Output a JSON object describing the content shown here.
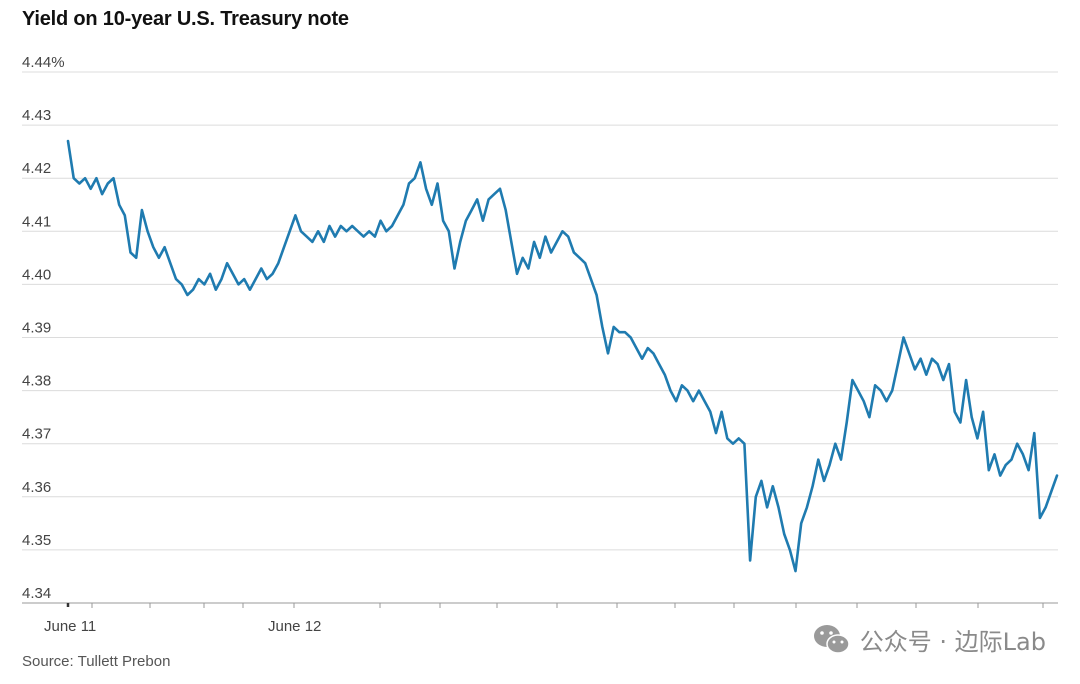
{
  "chart_data": {
    "type": "line",
    "title": "Yield on 10-year U.S. Treasury note",
    "source": "Source: Tullett Prebon",
    "ylim": [
      4.34,
      4.44
    ],
    "y_ticks": [
      4.34,
      4.35,
      4.36,
      4.37,
      4.38,
      4.39,
      4.4,
      4.41,
      4.42,
      4.43,
      4.44
    ],
    "y_tick_labels": [
      "4.34",
      "4.35",
      "4.36",
      "4.37",
      "4.38",
      "4.39",
      "4.40",
      "4.41",
      "4.42",
      "4.43",
      "4.44%"
    ],
    "x_labels": [
      "June 11",
      "June 12"
    ],
    "grid": true,
    "line_color": "#1f7bb0",
    "series": [
      {
        "values": [
          4.427,
          4.42,
          4.419,
          4.42,
          4.418,
          4.42,
          4.417,
          4.419,
          4.42,
          4.415,
          4.413,
          4.406,
          4.405,
          4.414,
          4.41,
          4.407,
          4.405,
          4.407,
          4.404,
          4.401,
          4.4,
          4.398,
          4.399,
          4.401,
          4.4,
          4.402,
          4.399,
          4.401,
          4.404,
          4.402,
          4.4,
          4.401,
          4.399,
          4.401,
          4.403,
          4.401,
          4.402,
          4.404,
          4.407,
          4.41,
          4.413,
          4.41,
          4.409,
          4.408,
          4.41,
          4.408,
          4.411,
          4.409,
          4.411,
          4.41,
          4.411,
          4.41,
          4.409,
          4.41,
          4.409,
          4.412,
          4.41,
          4.411,
          4.413,
          4.415,
          4.419,
          4.42,
          4.423,
          4.418,
          4.415,
          4.419,
          4.412,
          4.41,
          4.403,
          4.408,
          4.412,
          4.414,
          4.416,
          4.412,
          4.416,
          4.417,
          4.418,
          4.414,
          4.408,
          4.402,
          4.405,
          4.403,
          4.408,
          4.405,
          4.409,
          4.406,
          4.408,
          4.41,
          4.409,
          4.406,
          4.405,
          4.404,
          4.401,
          4.398,
          4.392,
          4.387,
          4.392,
          4.391,
          4.391,
          4.39,
          4.388,
          4.386,
          4.388,
          4.387,
          4.385,
          4.383,
          4.38,
          4.378,
          4.381,
          4.38,
          4.378,
          4.38,
          4.378,
          4.376,
          4.372,
          4.376,
          4.371,
          4.37,
          4.371,
          4.37,
          4.348,
          4.36,
          4.363,
          4.358,
          4.362,
          4.358,
          4.353,
          4.35,
          4.346,
          4.355,
          4.358,
          4.362,
          4.367,
          4.363,
          4.366,
          4.37,
          4.367,
          4.374,
          4.382,
          4.38,
          4.378,
          4.375,
          4.381,
          4.38,
          4.378,
          4.38,
          4.385,
          4.39,
          4.387,
          4.384,
          4.386,
          4.383,
          4.386,
          4.385,
          4.382,
          4.385,
          4.376,
          4.374,
          4.382,
          4.375,
          4.371,
          4.376,
          4.365,
          4.368,
          4.364,
          4.366,
          4.367,
          4.37,
          4.368,
          4.365,
          4.372,
          4.356,
          4.358,
          4.361,
          4.364
        ]
      }
    ]
  },
  "watermark": {
    "icon": "wechat-icon",
    "text": "公众号 · 边际Lab"
  }
}
